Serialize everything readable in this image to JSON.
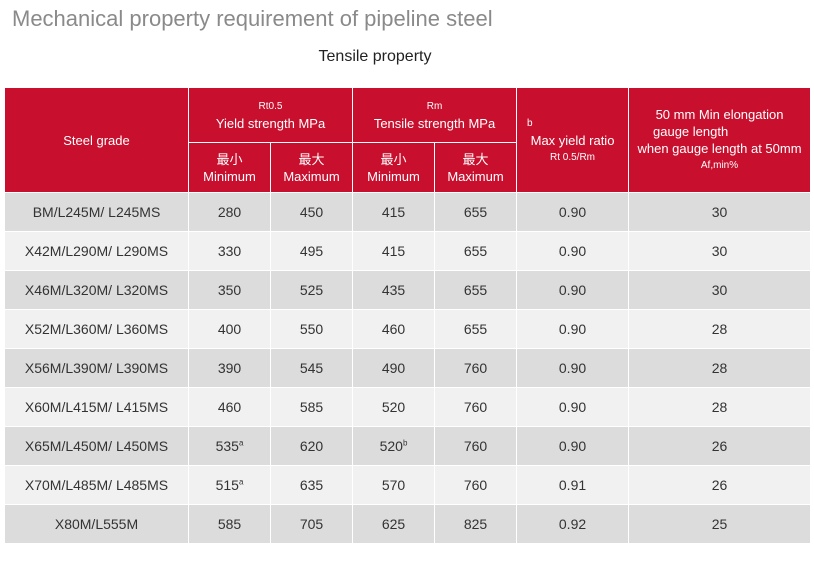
{
  "title": "Mechanical property requirement of pipeline steel",
  "subtitle": "Tensile property",
  "header": {
    "steel_grade": "Steel grade",
    "yield": {
      "symbol": "Rt0.5",
      "label": "Yield strength MPa"
    },
    "tensile": {
      "symbol": "Rm",
      "label": "Tensile strength MPa"
    },
    "ratio": {
      "note": "b",
      "label": "Max yield ratio",
      "formula": "Rt 0.5/Rm"
    },
    "elongation": {
      "line1": "50 mm Min elongation",
      "line2": "gauge length",
      "line3": "when gauge length at 50mm",
      "line4": "Af,min%"
    },
    "min_cn": "最小",
    "min_en": "Minimum",
    "max_cn": "最大",
    "max_en": "Maximum"
  },
  "rows": [
    {
      "grade": "BM/L245M/ L245MS",
      "ys_min": "280",
      "ys_min_note": "",
      "ys_max": "450",
      "ts_min": "415",
      "ts_min_note": "",
      "ts_max": "655",
      "ratio": "0.90",
      "elong": "30"
    },
    {
      "grade": "X42M/L290M/ L290MS",
      "ys_min": "330",
      "ys_min_note": "",
      "ys_max": "495",
      "ts_min": "415",
      "ts_min_note": "",
      "ts_max": "655",
      "ratio": "0.90",
      "elong": "30"
    },
    {
      "grade": "X46M/L320M/ L320MS",
      "ys_min": "350",
      "ys_min_note": "",
      "ys_max": "525",
      "ts_min": "435",
      "ts_min_note": "",
      "ts_max": "655",
      "ratio": "0.90",
      "elong": "30"
    },
    {
      "grade": "X52M/L360M/ L360MS",
      "ys_min": "400",
      "ys_min_note": "",
      "ys_max": "550",
      "ts_min": "460",
      "ts_min_note": "",
      "ts_max": "655",
      "ratio": "0.90",
      "elong": "28"
    },
    {
      "grade": "X56M/L390M/ L390MS",
      "ys_min": "390",
      "ys_min_note": "",
      "ys_max": "545",
      "ts_min": "490",
      "ts_min_note": "",
      "ts_max": "760",
      "ratio": "0.90",
      "elong": "28"
    },
    {
      "grade": "X60M/L415M/ L415MS",
      "ys_min": "460",
      "ys_min_note": "",
      "ys_max": "585",
      "ts_min": "520",
      "ts_min_note": "",
      "ts_max": "760",
      "ratio": "0.90",
      "elong": "28"
    },
    {
      "grade": "X65M/L450M/ L450MS",
      "ys_min": "535",
      "ys_min_note": "a",
      "ys_max": "620",
      "ts_min": "520",
      "ts_min_note": "b",
      "ts_max": "760",
      "ratio": "0.90",
      "elong": "26"
    },
    {
      "grade": "X70M/L485M/ L485MS",
      "ys_min": "515",
      "ys_min_note": "a",
      "ys_max": "635",
      "ts_min": "570",
      "ts_min_note": "",
      "ts_max": "760",
      "ratio": "0.91",
      "elong": "26"
    },
    {
      "grade": "X80M/L555M",
      "ys_min": "585",
      "ys_min_note": "",
      "ys_max": "705",
      "ts_min": "625",
      "ts_min_note": "",
      "ts_max": "825",
      "ratio": "0.92",
      "elong": "25"
    }
  ],
  "colors": {
    "header_bg": "#c8102e",
    "row_dark": "#dcdcdc",
    "row_light": "#f1f1f1",
    "title": "#8a8a8a"
  }
}
